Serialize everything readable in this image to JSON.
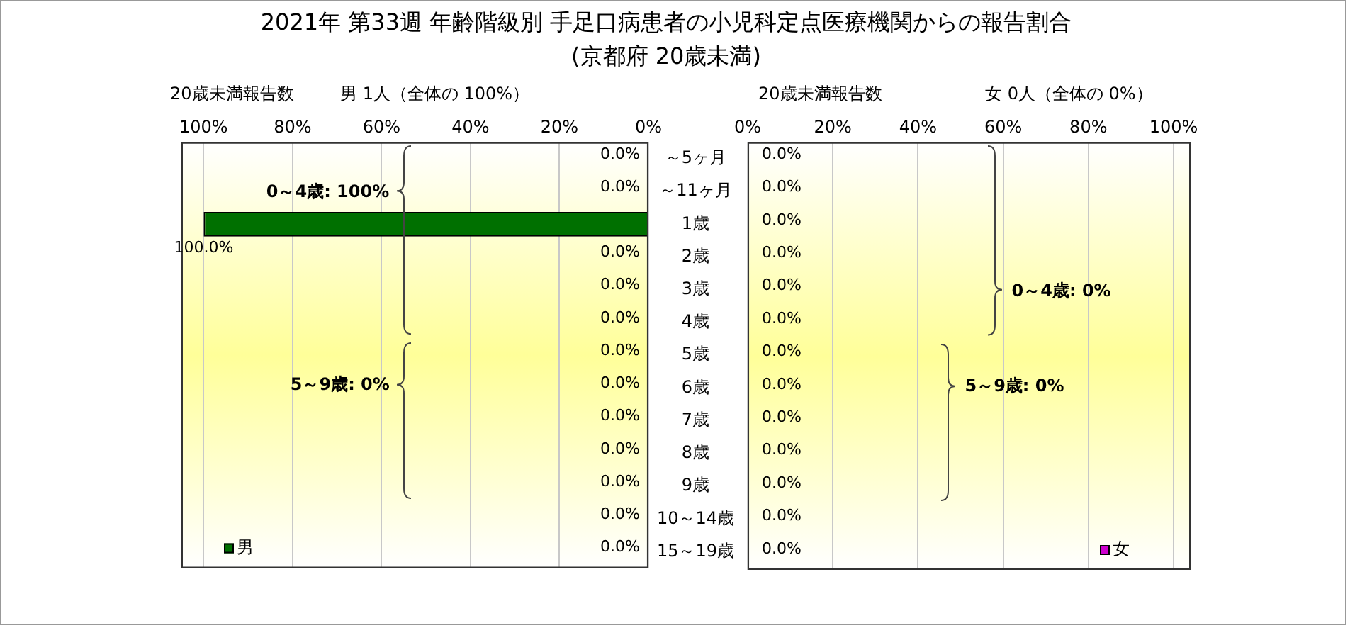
{
  "chart_data": [
    {
      "type": "bar",
      "title": "2021年 第33週 年齢階級別 手足口病患者の小児科定点医療機関からの報告割合",
      "subtitle": "(京都府 20歳未満)",
      "orientation": "horizontal",
      "categories": [
        "～5ヶ月",
        "～11ヶ月",
        "1歳",
        "2歳",
        "3歳",
        "4歳",
        "5歳",
        "6歳",
        "7歳",
        "8歳",
        "9歳",
        "10～14歳",
        "15～19歳"
      ],
      "series": [
        {
          "name": "男",
          "color": "#007000",
          "values": [
            0,
            0,
            100,
            0,
            0,
            0,
            0,
            0,
            0,
            0,
            0,
            0,
            0
          ],
          "value_labels": [
            "0.0%",
            "0.0%",
            "100.0%",
            "0.0%",
            "0.0%",
            "0.0%",
            "0.0%",
            "0.0%",
            "0.0%",
            "0.0%",
            "0.0%",
            "0.0%",
            "0.0%"
          ]
        }
      ],
      "xlim": [
        105,
        0
      ],
      "xticks": [
        {
          "value": 100,
          "label": "100%"
        },
        {
          "value": 80,
          "label": "80%"
        },
        {
          "value": 60,
          "label": "60%"
        },
        {
          "value": 40,
          "label": "40%"
        },
        {
          "value": 20,
          "label": "20%"
        },
        {
          "value": 0,
          "label": "0%"
        }
      ],
      "grid": "x",
      "legend": "bottom left",
      "annotations": [
        "20歳未満報告数",
        "男  1人（全体の  100%）",
        "0～4歳: 100%",
        "5～9歳: 0%"
      ]
    },
    {
      "type": "bar",
      "orientation": "horizontal",
      "categories": [
        null,
        null,
        null,
        null,
        null,
        null,
        null,
        null,
        null,
        null,
        null,
        null,
        null
      ],
      "series": [
        {
          "name": "女",
          "color": "#cc00cc",
          "values": [
            0,
            0,
            0,
            0,
            0,
            0,
            0,
            0,
            0,
            0,
            0,
            0,
            0
          ],
          "value_labels": [
            "0.0%",
            "0.0%",
            "0.0%",
            "0.0%",
            "0.0%",
            "0.0%",
            "0.0%",
            "0.0%",
            "0.0%",
            "0.0%",
            "0.0%",
            "0.0%",
            "0.0%"
          ]
        }
      ],
      "xlim": [
        0,
        104
      ],
      "xticks": [
        {
          "value": 0,
          "label": "0%"
        },
        {
          "value": 20,
          "label": "20%"
        },
        {
          "value": 40,
          "label": "40%"
        },
        {
          "value": 60,
          "label": "60%"
        },
        {
          "value": 80,
          "label": "80%"
        },
        {
          "value": 100,
          "label": "100%"
        }
      ],
      "grid": "x",
      "legend": "bottom right",
      "tick_labels": "x",
      "annotations": [
        "20歳未満報告数",
        "女  0人（全体の  0%）",
        "0～4歳: 0%",
        "5～9歳: 0%"
      ]
    }
  ]
}
